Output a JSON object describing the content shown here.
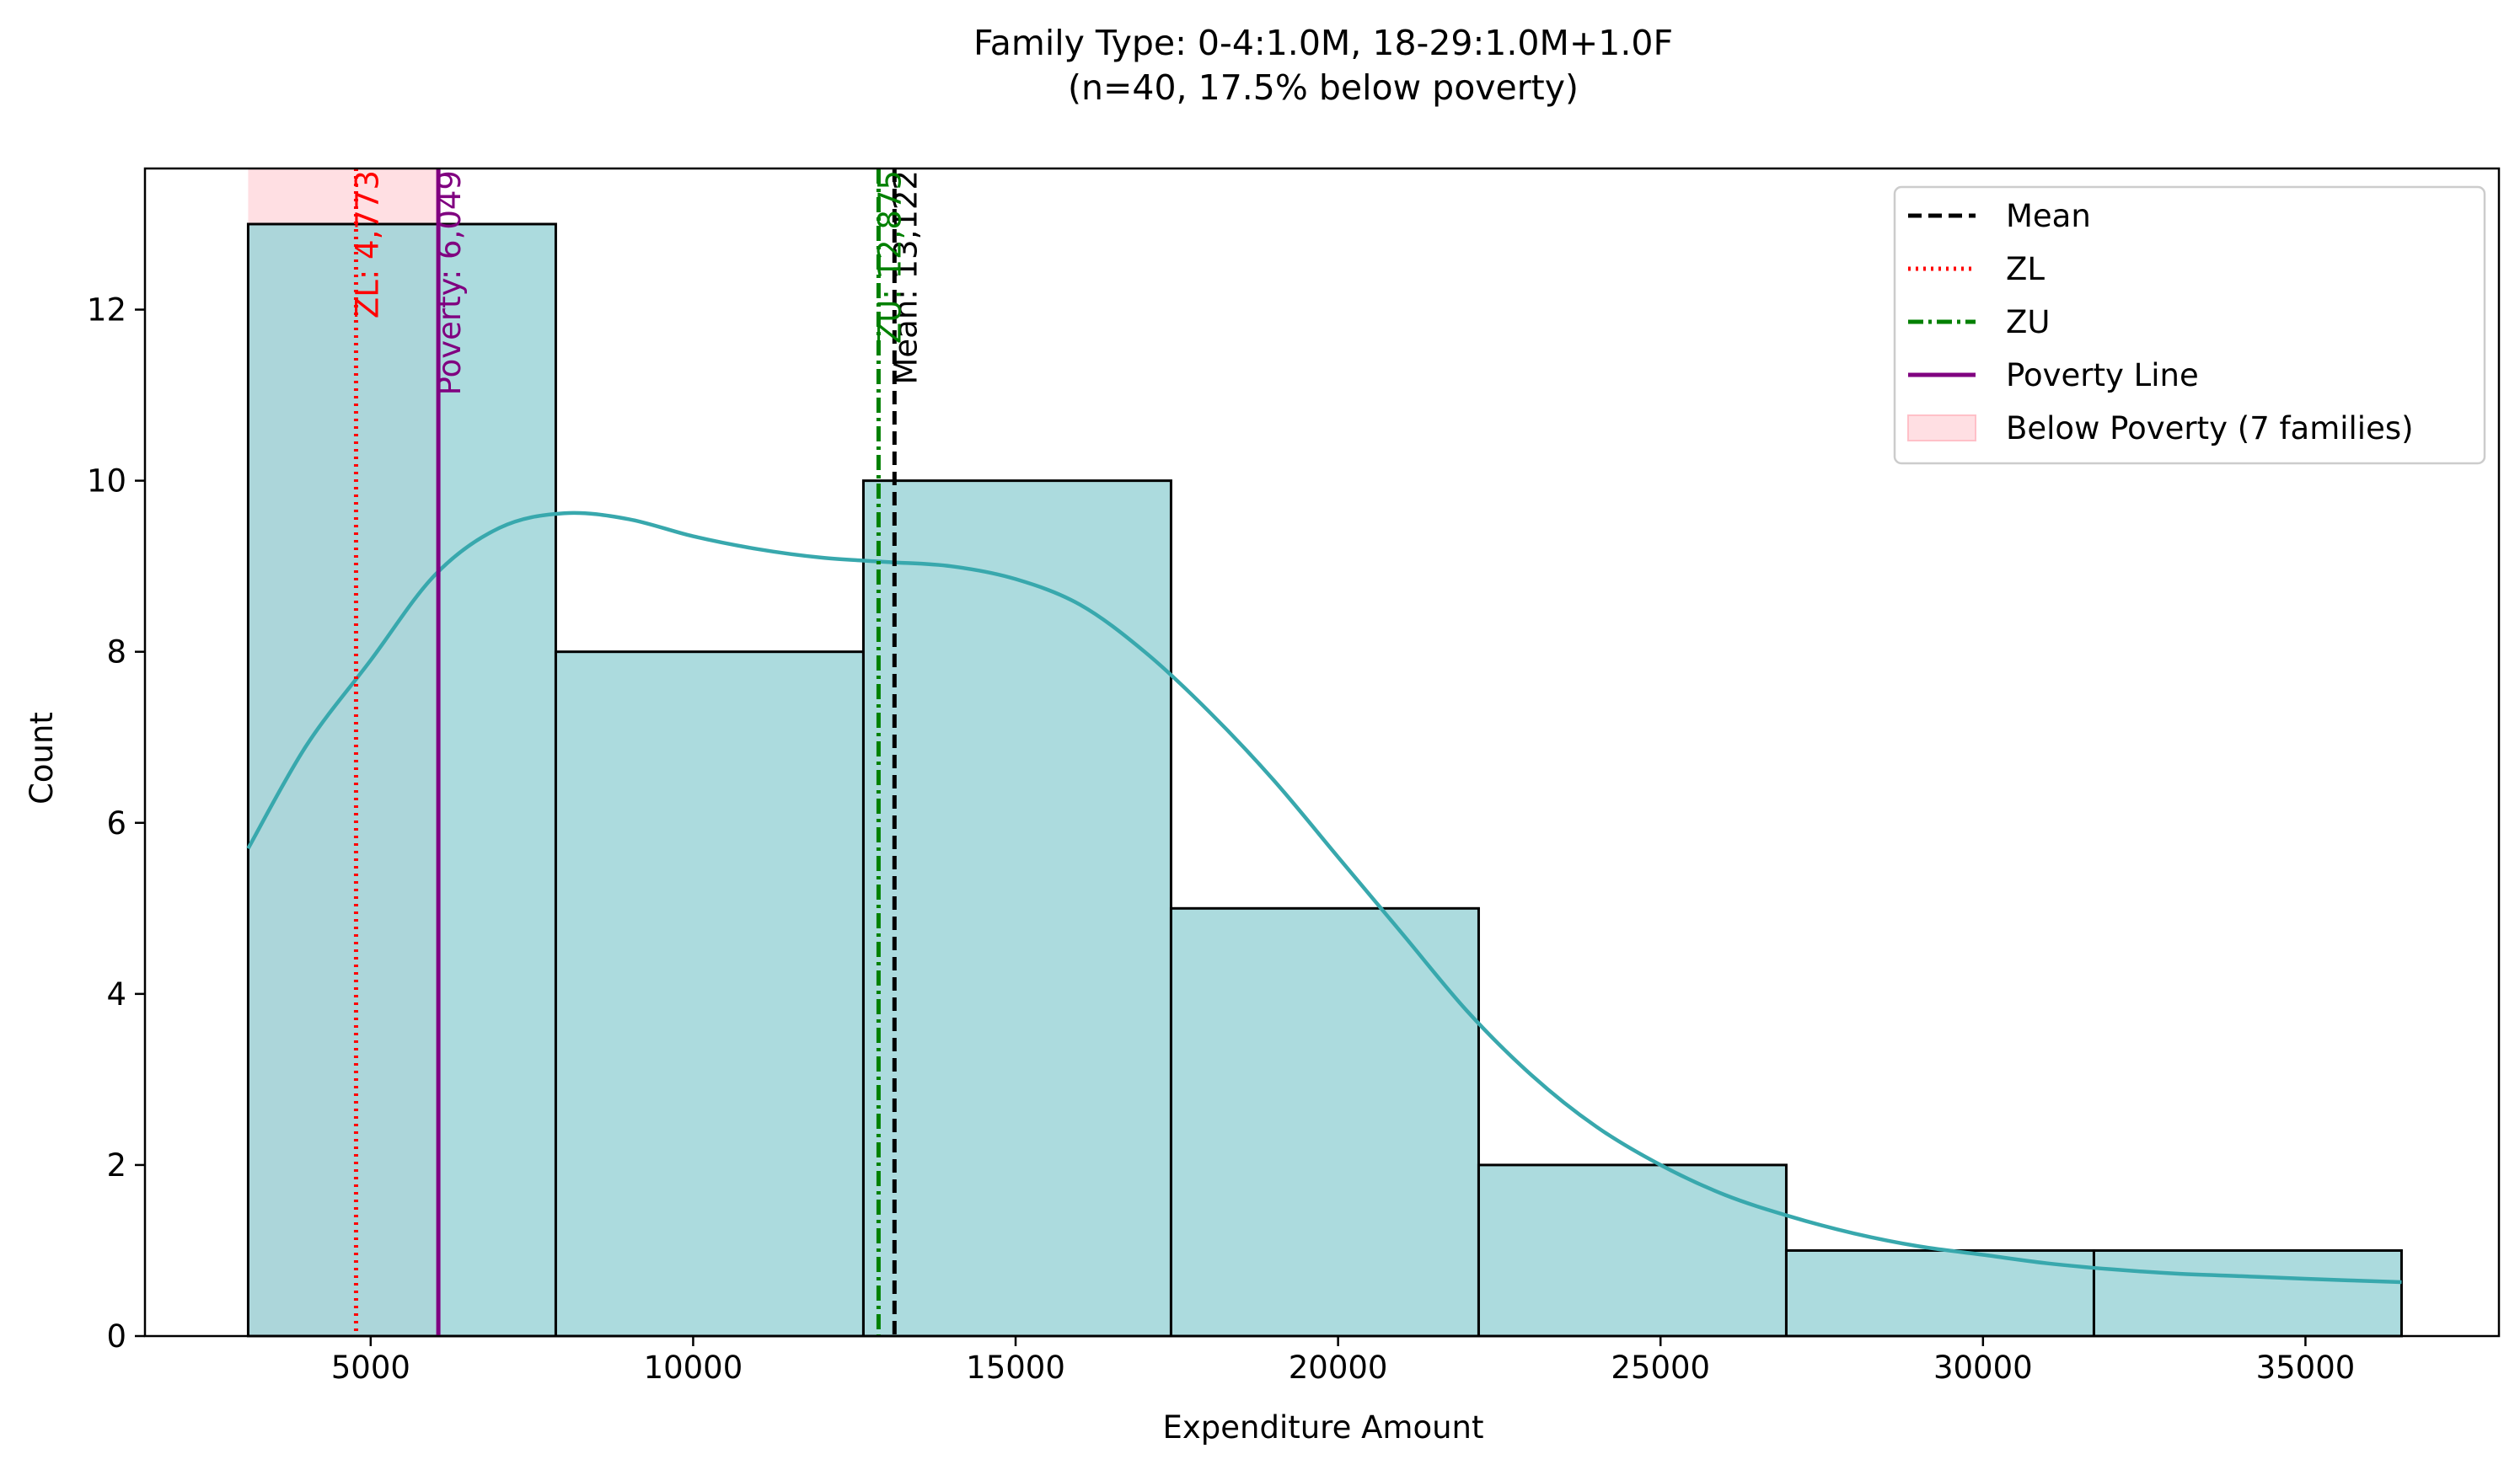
{
  "chart_data": {
    "type": "bar",
    "title": "Family Type: 0-4:1.0M, 18-29:1.0M+1.0F",
    "subtitle": "(n=40, 17.5% below poverty)",
    "xlabel": "Expenditure Amount",
    "ylabel": "Count",
    "xlim": [
      1500,
      38000
    ],
    "ylim": [
      0,
      13.65
    ],
    "xticks": [
      5000,
      10000,
      15000,
      20000,
      25000,
      30000,
      35000
    ],
    "yticks": [
      0,
      2,
      4,
      6,
      8,
      10,
      12
    ],
    "grid": false,
    "legend_position": "top-right",
    "bins": [
      {
        "start": 3100,
        "end": 7870,
        "count": 13
      },
      {
        "start": 7870,
        "end": 12640,
        "count": 8
      },
      {
        "start": 12640,
        "end": 17410,
        "count": 10
      },
      {
        "start": 17410,
        "end": 22180,
        "count": 5
      },
      {
        "start": 22180,
        "end": 26950,
        "count": 2
      },
      {
        "start": 26950,
        "end": 31720,
        "count": 1
      },
      {
        "start": 31720,
        "end": 36490,
        "count": 1
      }
    ],
    "kde": {
      "x": [
        3100,
        4000,
        5000,
        6000,
        7000,
        8000,
        9000,
        10000,
        11000,
        12000,
        13000,
        14000,
        15000,
        16000,
        17000,
        18000,
        19000,
        20000,
        21000,
        22000,
        23000,
        24000,
        25000,
        26000,
        27000,
        28000,
        29000,
        30000,
        31000,
        32000,
        33000,
        34000,
        35000,
        36490
      ],
      "y": [
        5.7,
        6.9,
        7.9,
        8.9,
        9.45,
        9.62,
        9.55,
        9.35,
        9.2,
        9.1,
        9.05,
        9.0,
        8.85,
        8.55,
        8.0,
        7.3,
        6.5,
        5.6,
        4.7,
        3.8,
        3.05,
        2.45,
        2.0,
        1.65,
        1.4,
        1.2,
        1.05,
        0.95,
        0.85,
        0.78,
        0.73,
        0.7,
        0.67,
        0.63
      ]
    },
    "vlines": [
      {
        "name": "Mean",
        "value": 13122,
        "label": "Mean: 13,122",
        "color": "#000000",
        "style": "dashed"
      },
      {
        "name": "ZL",
        "value": 4773,
        "label": "ZL: 4,773",
        "color": "#ff0000",
        "style": "dotted"
      },
      {
        "name": "ZU",
        "value": 12875,
        "label": "ZU: 12,875",
        "color": "#008000",
        "style": "dashdot"
      },
      {
        "name": "Poverty Line",
        "value": 6049,
        "label": "Poverty: 6,049",
        "color": "#800080",
        "style": "solid"
      }
    ],
    "poverty_region": {
      "start": 3100,
      "end": 6049,
      "label": "Below Poverty (7 families)",
      "color": "#ffc0c8"
    },
    "hist_color": "#9ed5d8",
    "kde_color": "#38a8ad"
  }
}
